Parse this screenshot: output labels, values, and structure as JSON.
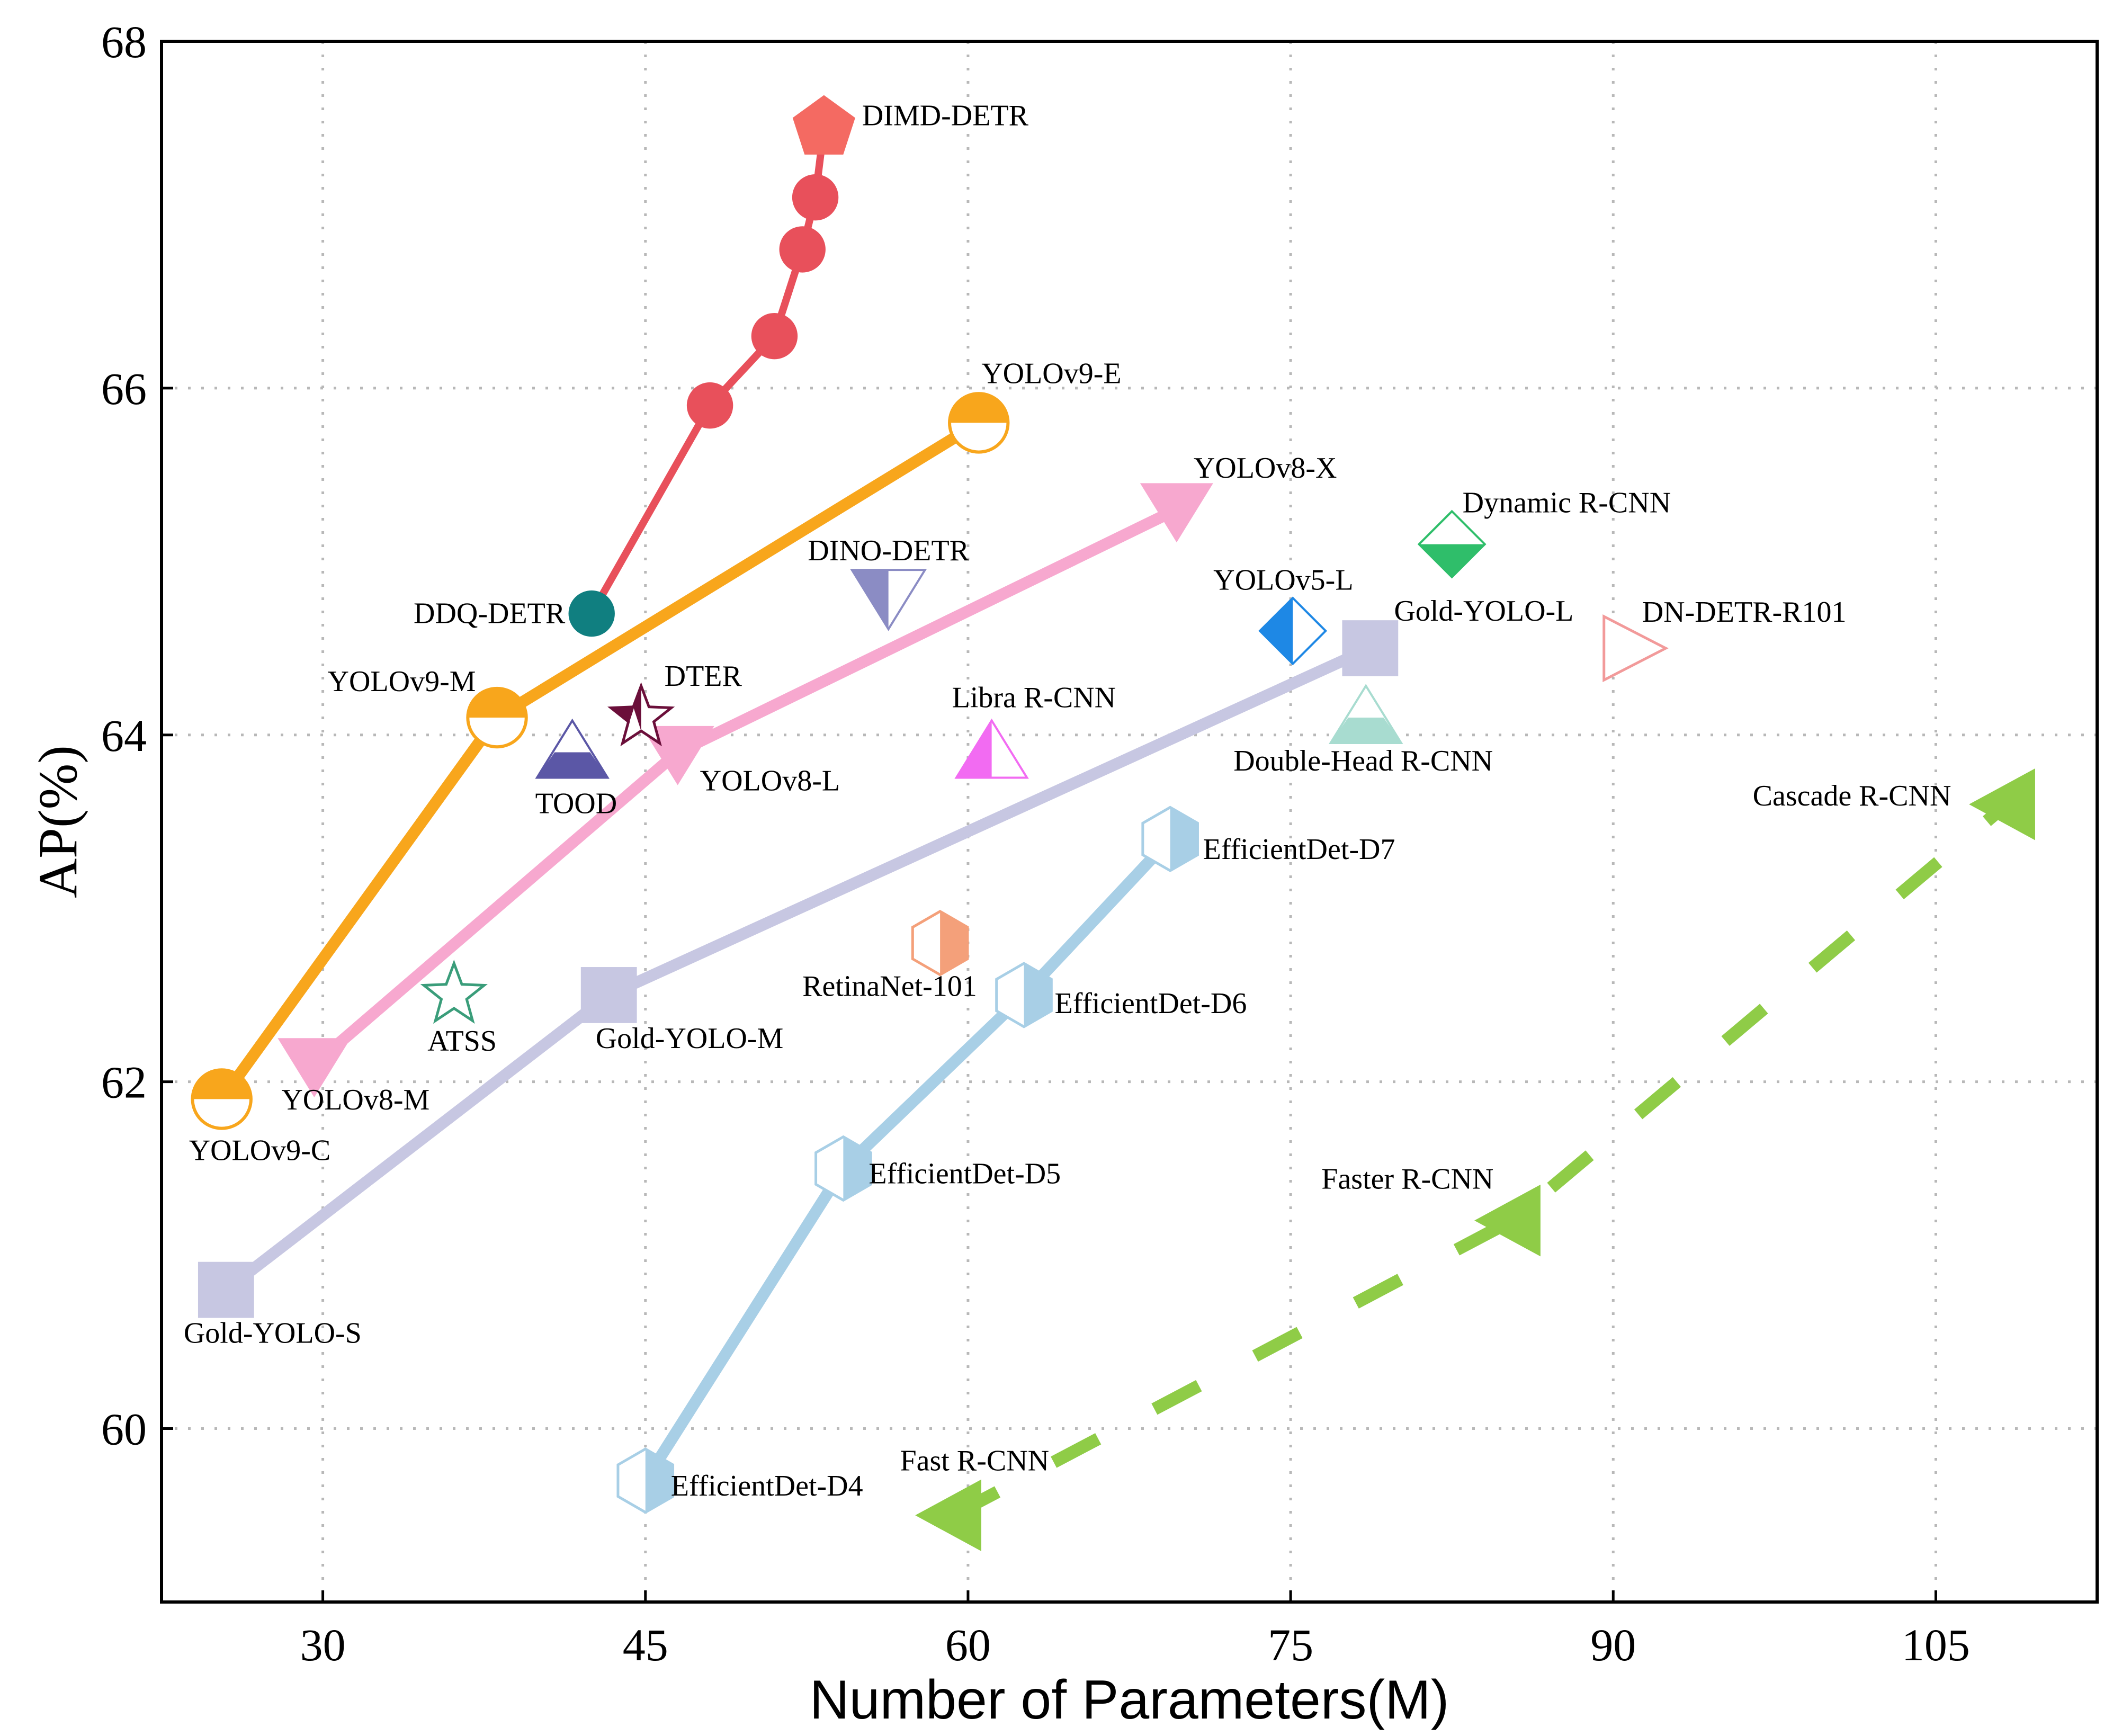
{
  "chart_data": {
    "type": "scatter",
    "xlabel": "Number of Parameters(M)",
    "ylabel": "AP(%)",
    "xlim": [
      22.5,
      112.5
    ],
    "ylim": [
      59.0,
      68.0
    ],
    "xticks": [
      30,
      45,
      60,
      75,
      90,
      105
    ],
    "yticks": [
      60,
      62,
      64,
      66,
      68
    ],
    "grid": true,
    "grid_style": "dotted",
    "legend": "none",
    "series": [
      {
        "name": "DIMD-DETR",
        "color": "#e8505b",
        "line_style": "solid",
        "marker": "circle",
        "points": [
          {
            "x": 42.5,
            "y": 64.7,
            "label": "DDQ-DETR",
            "marker": "circle-teal"
          },
          {
            "x": 48.0,
            "y": 65.9,
            "label": ""
          },
          {
            "x": 51.0,
            "y": 66.3,
            "label": ""
          },
          {
            "x": 52.3,
            "y": 66.8,
            "label": ""
          },
          {
            "x": 52.9,
            "y": 67.1,
            "label": ""
          },
          {
            "x": 53.3,
            "y": 67.5,
            "label": "DIMD-DETR",
            "marker": "pentagon"
          }
        ]
      },
      {
        "name": "YOLOv9",
        "color": "#f8a61c",
        "line_style": "solid",
        "marker": "circle-half",
        "points": [
          {
            "x": 25.3,
            "y": 61.9,
            "label": "YOLOv9-C"
          },
          {
            "x": 38.1,
            "y": 64.1,
            "label": "YOLOv9-M"
          },
          {
            "x": 60.5,
            "y": 65.8,
            "label": "YOLOv9-E"
          }
        ]
      },
      {
        "name": "YOLOv8",
        "color": "#f7a8cf",
        "line_style": "solid",
        "marker": "triangle-down",
        "points": [
          {
            "x": 29.6,
            "y": 62.1,
            "label": "YOLOv8-M"
          },
          {
            "x": 46.5,
            "y": 63.9,
            "label": "YOLOv8-L"
          },
          {
            "x": 69.7,
            "y": 65.3,
            "label": "YOLOv8-X"
          }
        ]
      },
      {
        "name": "Gold-YOLO",
        "color": "#c7c7e2",
        "line_style": "solid",
        "marker": "square",
        "points": [
          {
            "x": 25.5,
            "y": 60.8,
            "label": "Gold-YOLO-S"
          },
          {
            "x": 43.3,
            "y": 62.5,
            "label": "Gold-YOLO-M"
          },
          {
            "x": 78.7,
            "y": 64.5,
            "label": "Gold-YOLO-L"
          }
        ]
      },
      {
        "name": "EfficientDet",
        "color": "#a8cfe6",
        "line_style": "solid",
        "marker": "hexagon-half",
        "points": [
          {
            "x": 45.0,
            "y": 59.7,
            "label": "EfficientDet-D4"
          },
          {
            "x": 54.2,
            "y": 61.5,
            "label": "EfficientDet-D5"
          },
          {
            "x": 62.6,
            "y": 62.5,
            "label": "EfficientDet-D6"
          },
          {
            "x": 69.4,
            "y": 63.4,
            "label": "EfficientDet-D7"
          }
        ]
      },
      {
        "name": "R-CNN",
        "color": "#8fcc47",
        "line_style": "dashed",
        "marker": "triangle-left",
        "points": [
          {
            "x": 59.3,
            "y": 59.5,
            "label": "Fast R-CNN"
          },
          {
            "x": 85.3,
            "y": 61.2,
            "label": "Faster R-CNN"
          },
          {
            "x": 108.3,
            "y": 63.6,
            "label": "Cascade R-CNN"
          }
        ]
      }
    ],
    "standalone_points": [
      {
        "label": "DINO-DETR",
        "x": 56.3,
        "y": 64.8,
        "marker": "triangle-down-half",
        "color": "#8b8cc4"
      },
      {
        "label": "DTER",
        "x": 44.8,
        "y": 64.1,
        "marker": "star-half",
        "color": "#6b0f3a"
      },
      {
        "label": "TOOD",
        "x": 41.6,
        "y": 63.9,
        "marker": "triangle-up-half",
        "color": "#5b57a6"
      },
      {
        "label": "ATSS",
        "x": 36.1,
        "y": 62.5,
        "marker": "star-outline",
        "color": "#3a9d7a"
      },
      {
        "label": "Libra R-CNN",
        "x": 61.1,
        "y": 63.9,
        "marker": "triangle-up-halfv",
        "color": "#f26bf2"
      },
      {
        "label": "RetinaNet-101",
        "x": 58.7,
        "y": 62.8,
        "marker": "hexagon-halfv",
        "color": "#f4a07a"
      },
      {
        "label": "YOLOv5-L",
        "x": 75.1,
        "y": 64.6,
        "marker": "diamond-halfv",
        "color": "#1e88e5"
      },
      {
        "label": "Dynamic R-CNN",
        "x": 82.5,
        "y": 65.1,
        "marker": "diamond-half",
        "color": "#2fbe6a"
      },
      {
        "label": "Double-Head R-CNN",
        "x": 78.5,
        "y": 64.1,
        "marker": "triangle-up-half-light",
        "color": "#a8dcd0"
      },
      {
        "label": "DN-DETR-R101",
        "x": 90.8,
        "y": 64.5,
        "marker": "triangle-right-outline",
        "color": "#f29a9a"
      }
    ]
  }
}
